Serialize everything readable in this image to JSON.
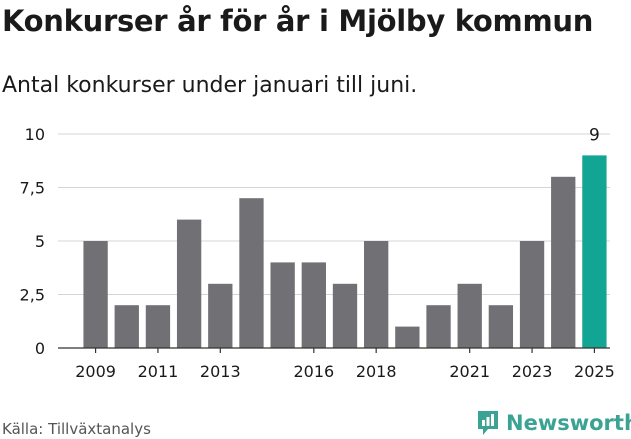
{
  "header": {
    "title": "Konkurser år för år i Mjölby kommun",
    "subtitle": "Antal konkurser under januari till juni."
  },
  "footer": {
    "source": "Källa: Tillväxtanalys",
    "brand": "Newsworthy"
  },
  "colors": {
    "bar": "#717075",
    "highlight": "#12a594",
    "grid": "#d4d4d4",
    "brand": "#3aa394"
  },
  "chart_data": {
    "type": "bar",
    "title": "Konkurser år för år i Mjölby kommun",
    "subtitle": "Antal konkurser under januari till juni.",
    "categories": [
      "2009",
      "2010",
      "2011",
      "2012",
      "2013",
      "2014",
      "2015",
      "2016",
      "2017",
      "2018",
      "2019",
      "2020",
      "2021",
      "2022",
      "2023",
      "2024",
      "2025"
    ],
    "values": [
      5,
      2,
      2,
      6,
      3,
      7,
      4,
      4,
      3,
      5,
      1,
      2,
      3,
      2,
      5,
      8,
      9
    ],
    "x_tick_labels": [
      "2009",
      "2011",
      "2013",
      "2016",
      "2018",
      "2021",
      "2023",
      "2025"
    ],
    "y_ticks": [
      0,
      2.5,
      5,
      7.5,
      10
    ],
    "y_tick_labels": [
      "0",
      "2,5",
      "5",
      "7,5",
      "10"
    ],
    "ylim": [
      0,
      10
    ],
    "highlight": {
      "category": "2025",
      "label": "9"
    },
    "xlabel": "",
    "ylabel": "",
    "grid": true,
    "legend": "none"
  }
}
